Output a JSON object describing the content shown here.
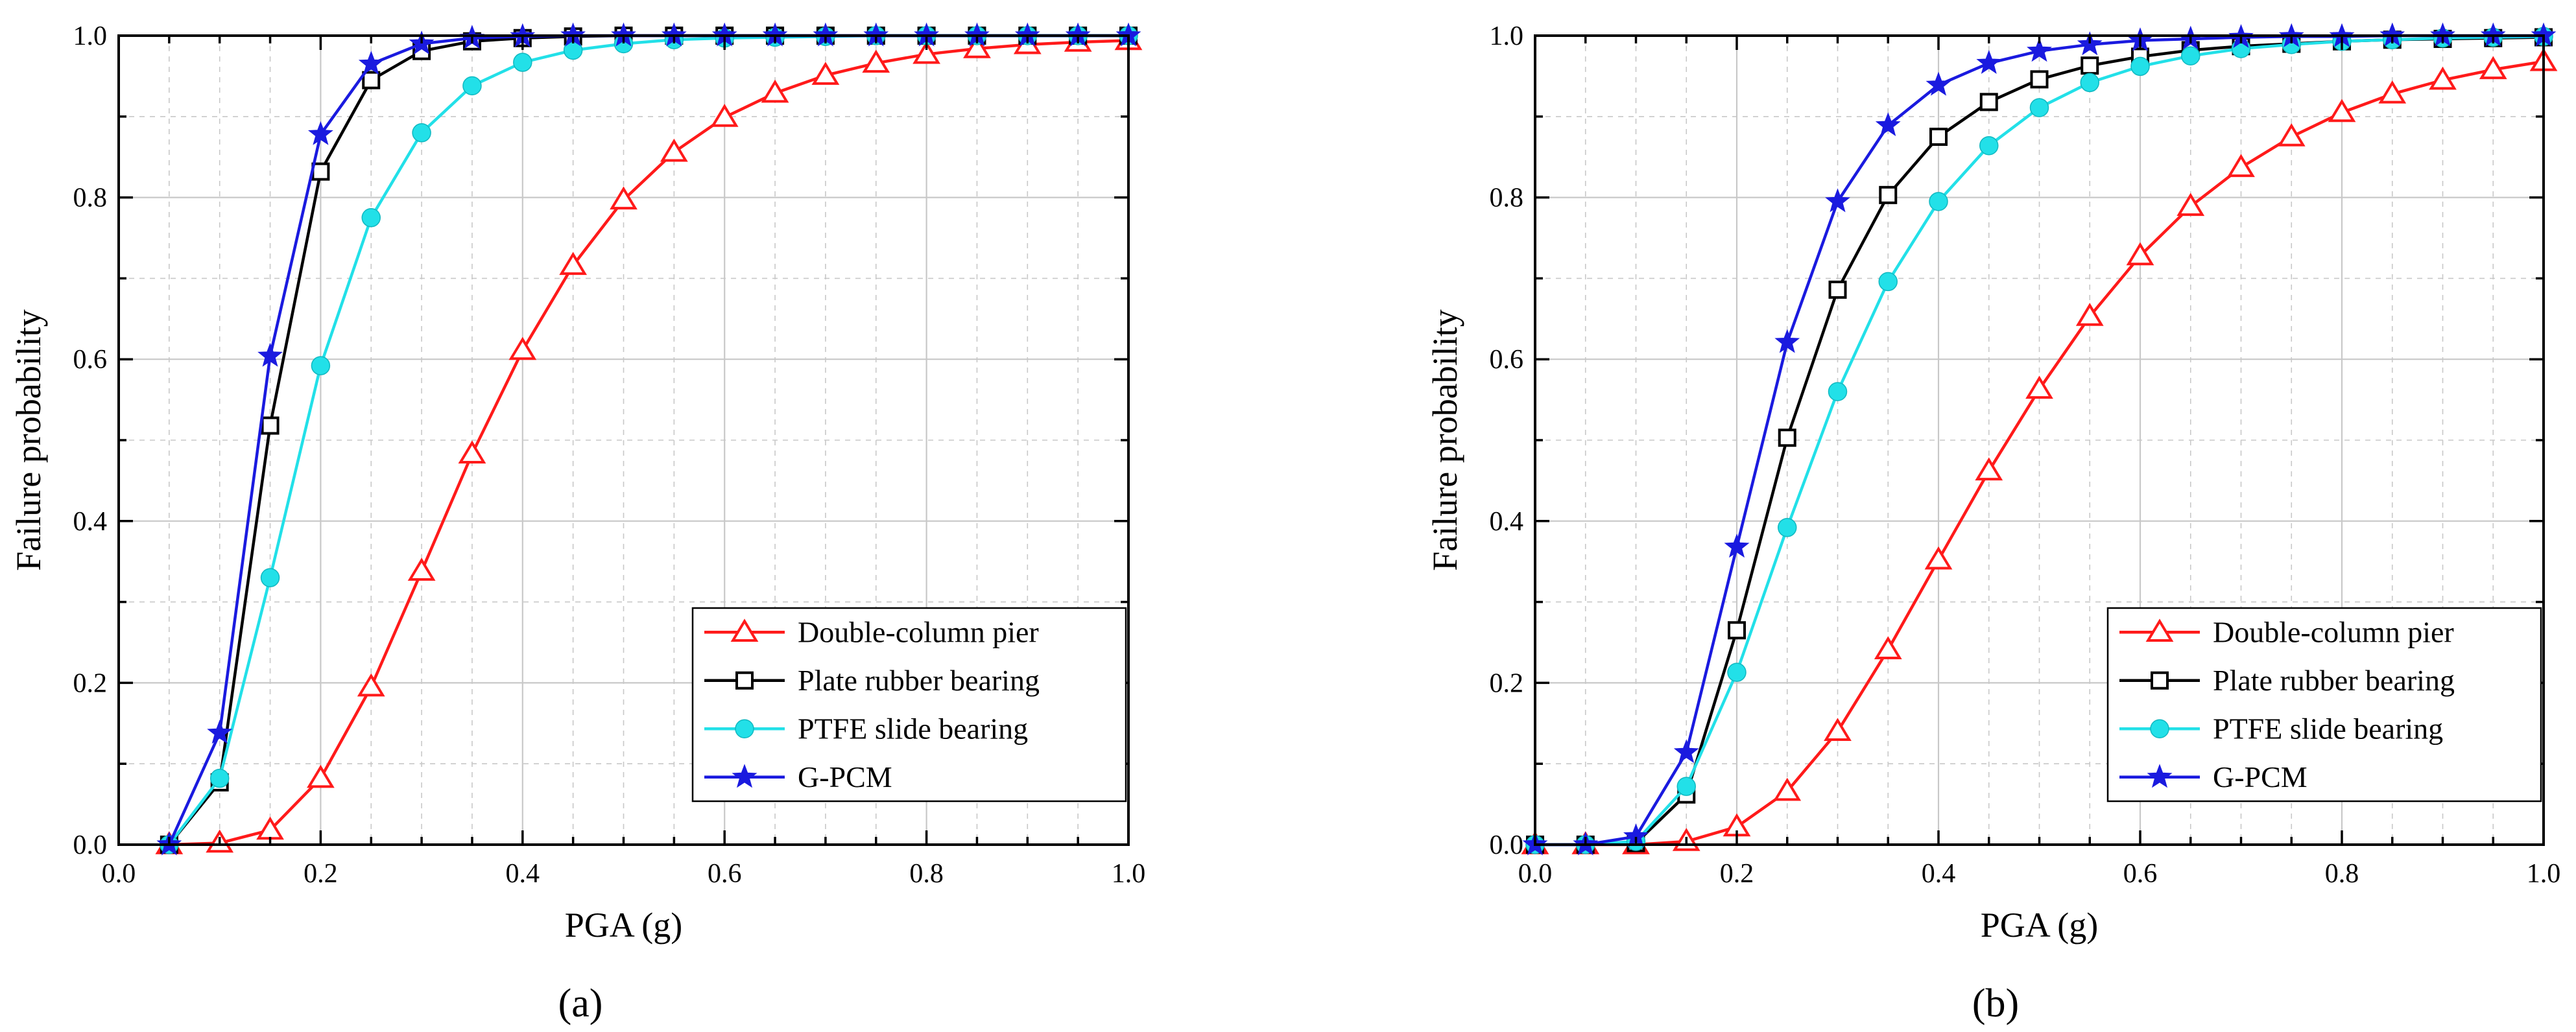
{
  "figure": {
    "panel_labels": [
      "(a)",
      "(b)"
    ]
  },
  "colors": {
    "double_column_pier": "#ff1a1a",
    "plate_rubber_bearing": "#000000",
    "ptfe_slide_bearing": "#22e0e8",
    "g_pcm": "#1a1adf",
    "grid": "#c8c8c8"
  },
  "chart_data": [
    {
      "type": "line",
      "panel": "(a)",
      "xlabel": "PGA (g)",
      "ylabel": "Failure probability",
      "xlim": [
        0.0,
        1.0
      ],
      "ylim": [
        0.0,
        1.0
      ],
      "xticks": [
        "0.0",
        "0.2",
        "0.4",
        "0.6",
        "0.8",
        "1.0"
      ],
      "yticks": [
        "0.0",
        "0.2",
        "0.4",
        "0.6",
        "0.8",
        "1.0"
      ],
      "grid": true,
      "legend_position": "bottom-right",
      "x": [
        0.05,
        0.1,
        0.15,
        0.2,
        0.25,
        0.3,
        0.35,
        0.4,
        0.45,
        0.5,
        0.55,
        0.6,
        0.65,
        0.7,
        0.75,
        0.8,
        0.85,
        0.9,
        0.95,
        1.0
      ],
      "series": [
        {
          "name": "Double-column pier",
          "color_key": "double_column_pier",
          "marker": "triangle",
          "values": [
            0.0,
            0.002,
            0.018,
            0.082,
            0.195,
            0.338,
            0.483,
            0.611,
            0.716,
            0.797,
            0.856,
            0.899,
            0.929,
            0.951,
            0.966,
            0.977,
            0.984,
            0.989,
            0.992,
            0.994
          ]
        },
        {
          "name": "Plate rubber bearing",
          "color_key": "plate_rubber_bearing",
          "marker": "square",
          "values": [
            0.0,
            0.077,
            0.518,
            0.832,
            0.945,
            0.981,
            0.993,
            0.997,
            0.999,
            1.0,
            1.0,
            1.0,
            1.0,
            1.0,
            1.0,
            1.0,
            1.0,
            1.0,
            1.0,
            1.0
          ]
        },
        {
          "name": "PTFE slide bearing",
          "color_key": "ptfe_slide_bearing",
          "marker": "circle",
          "values": [
            0.0,
            0.082,
            0.33,
            0.592,
            0.775,
            0.88,
            0.938,
            0.967,
            0.982,
            0.99,
            0.995,
            0.997,
            0.998,
            0.999,
            1.0,
            1.0,
            1.0,
            1.0,
            1.0,
            1.0
          ]
        },
        {
          "name": "G-PCM",
          "color_key": "g_pcm",
          "marker": "star",
          "values": [
            0.0,
            0.138,
            0.604,
            0.878,
            0.965,
            0.99,
            0.997,
            0.999,
            1.0,
            1.0,
            1.0,
            1.0,
            1.0,
            1.0,
            1.0,
            1.0,
            1.0,
            1.0,
            1.0,
            1.0
          ]
        }
      ]
    },
    {
      "type": "line",
      "panel": "(b)",
      "xlabel": "PGA (g)",
      "ylabel": "Failure probability",
      "xlim": [
        0.0,
        1.0
      ],
      "ylim": [
        0.0,
        1.0
      ],
      "xticks": [
        "0.0",
        "0.2",
        "0.4",
        "0.6",
        "0.8",
        "1.0"
      ],
      "yticks": [
        "0.0",
        "0.2",
        "0.4",
        "0.6",
        "0.8",
        "1.0"
      ],
      "grid": true,
      "legend_position": "bottom-right",
      "x": [
        0.0,
        0.05,
        0.1,
        0.15,
        0.2,
        0.25,
        0.3,
        0.35,
        0.4,
        0.45,
        0.5,
        0.55,
        0.6,
        0.65,
        0.7,
        0.75,
        0.8,
        0.85,
        0.9,
        0.95,
        1.0
      ],
      "series": [
        {
          "name": "Double-column pier",
          "color_key": "double_column_pier",
          "marker": "triangle",
          "values": [
            0.0,
            0.0,
            0.0,
            0.004,
            0.022,
            0.066,
            0.14,
            0.241,
            0.352,
            0.462,
            0.563,
            0.653,
            0.728,
            0.789,
            0.837,
            0.875,
            0.905,
            0.928,
            0.945,
            0.958,
            0.968
          ]
        },
        {
          "name": "Plate rubber bearing",
          "color_key": "plate_rubber_bearing",
          "marker": "square",
          "values": [
            0.0,
            0.0,
            0.002,
            0.062,
            0.265,
            0.503,
            0.686,
            0.803,
            0.875,
            0.918,
            0.946,
            0.963,
            0.974,
            0.982,
            0.987,
            0.99,
            0.993,
            0.995,
            0.996,
            0.997,
            0.998
          ]
        },
        {
          "name": "PTFE slide bearing",
          "color_key": "ptfe_slide_bearing",
          "marker": "circle",
          "values": [
            0.0,
            0.0,
            0.004,
            0.072,
            0.213,
            0.392,
            0.56,
            0.696,
            0.795,
            0.864,
            0.911,
            0.942,
            0.962,
            0.975,
            0.984,
            0.989,
            0.993,
            0.995,
            0.997,
            0.998,
            0.999
          ]
        },
        {
          "name": "G-PCM",
          "color_key": "g_pcm",
          "marker": "star",
          "values": [
            0.0,
            0.0,
            0.01,
            0.114,
            0.368,
            0.621,
            0.795,
            0.889,
            0.939,
            0.966,
            0.981,
            0.989,
            0.994,
            0.996,
            0.998,
            0.999,
            0.999,
            1.0,
            1.0,
            1.0,
            1.0
          ]
        }
      ]
    }
  ]
}
